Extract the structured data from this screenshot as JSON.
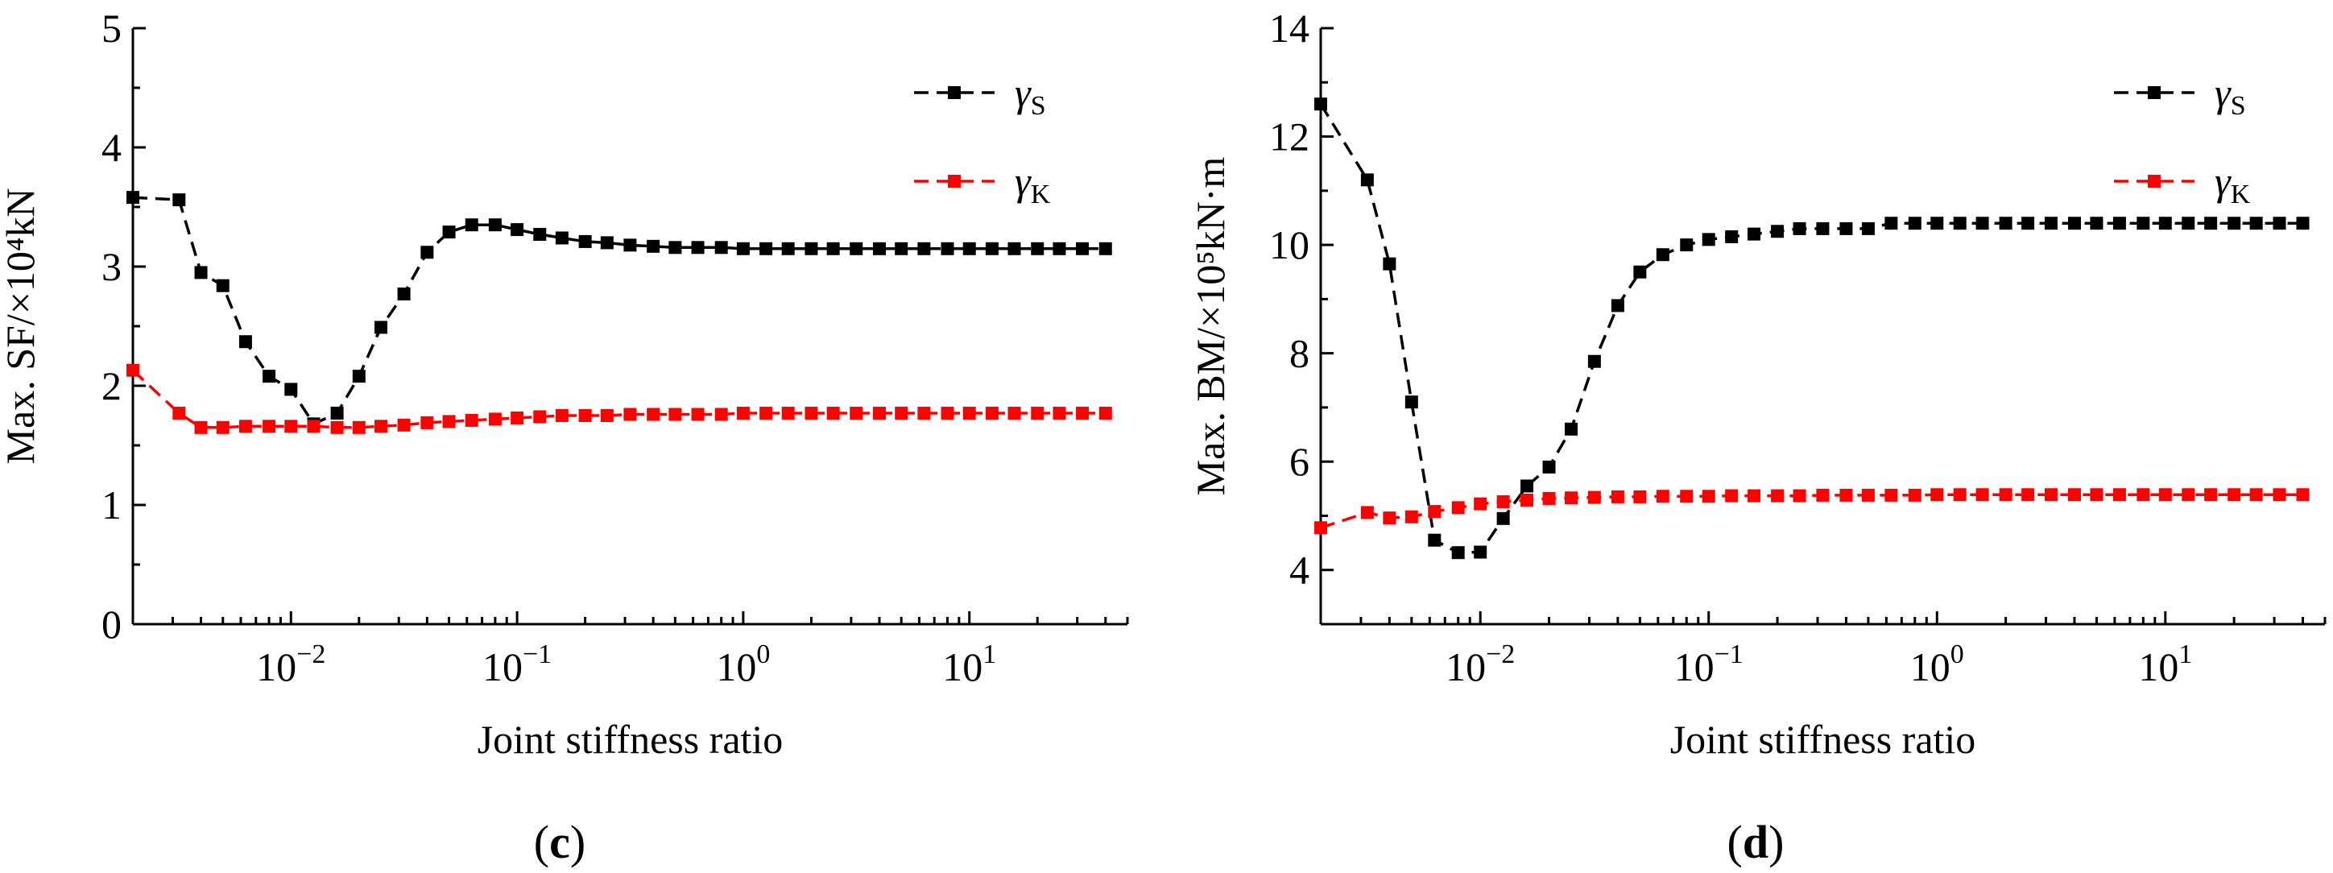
{
  "chart_data": [
    {
      "type": "line",
      "panel_label": "c",
      "ylabel": "Max. SF/×10⁴kN",
      "xlabel": "Joint stiffness ratio",
      "x_scale": "log",
      "xlim": [
        0.002,
        50
      ],
      "ylim": [
        0,
        5
      ],
      "y_ticks": [
        "0",
        "1",
        "2",
        "3",
        "4",
        "5"
      ],
      "x_ticks": [
        {
          "value": 0.01,
          "base": "10",
          "exp": "−2"
        },
        {
          "value": 0.1,
          "base": "10",
          "exp": "−1"
        },
        {
          "value": 1,
          "base": "10",
          "exp": "0"
        },
        {
          "value": 10,
          "base": "10",
          "exp": "1"
        }
      ],
      "legend": {
        "placement": "top-right"
      },
      "x": [
        0.002,
        0.0032,
        0.004,
        0.005,
        0.0063,
        0.008,
        0.01,
        0.0126,
        0.016,
        0.02,
        0.025,
        0.0316,
        0.04,
        0.05,
        0.063,
        0.08,
        0.1,
        0.126,
        0.158,
        0.2,
        0.25,
        0.316,
        0.4,
        0.5,
        0.63,
        0.8,
        1,
        1.26,
        1.58,
        2,
        2.5,
        3.16,
        4,
        5,
        6.3,
        8,
        10,
        12.6,
        15.8,
        20,
        25,
        31.6,
        40
      ],
      "series": [
        {
          "name": "γ",
          "subscript": "S",
          "color": "#000000",
          "values": [
            3.58,
            3.56,
            2.95,
            2.84,
            2.37,
            2.08,
            1.97,
            1.68,
            1.77,
            2.08,
            2.49,
            2.77,
            3.12,
            3.29,
            3.35,
            3.35,
            3.31,
            3.27,
            3.24,
            3.21,
            3.2,
            3.18,
            3.17,
            3.16,
            3.16,
            3.16,
            3.15,
            3.15,
            3.15,
            3.15,
            3.15,
            3.15,
            3.15,
            3.15,
            3.15,
            3.15,
            3.15,
            3.15,
            3.15,
            3.15,
            3.15,
            3.15,
            3.15
          ]
        },
        {
          "name": "γ",
          "subscript": "K",
          "color": "#ff0000",
          "values": [
            2.13,
            1.77,
            1.65,
            1.65,
            1.66,
            1.66,
            1.66,
            1.66,
            1.65,
            1.65,
            1.66,
            1.67,
            1.69,
            1.7,
            1.71,
            1.72,
            1.73,
            1.74,
            1.75,
            1.75,
            1.75,
            1.76,
            1.76,
            1.76,
            1.76,
            1.76,
            1.77,
            1.77,
            1.77,
            1.77,
            1.77,
            1.77,
            1.77,
            1.77,
            1.77,
            1.77,
            1.77,
            1.77,
            1.77,
            1.77,
            1.77,
            1.77,
            1.77
          ]
        }
      ]
    },
    {
      "type": "line",
      "panel_label": "d",
      "ylabel": "Max. BM/×10⁵kN·m",
      "xlabel": "Joint stiffness ratio",
      "x_scale": "log",
      "xlim": [
        0.002,
        50
      ],
      "ylim": [
        3,
        14
      ],
      "y_ticks": [
        "4",
        "6",
        "8",
        "10",
        "12",
        "14"
      ],
      "x_ticks": [
        {
          "value": 0.01,
          "base": "10",
          "exp": "−2"
        },
        {
          "value": 0.1,
          "base": "10",
          "exp": "−1"
        },
        {
          "value": 1,
          "base": "10",
          "exp": "0"
        },
        {
          "value": 10,
          "base": "10",
          "exp": "1"
        }
      ],
      "legend": {
        "placement": "top-right"
      },
      "x": [
        0.002,
        0.0032,
        0.004,
        0.005,
        0.0063,
        0.008,
        0.01,
        0.0126,
        0.016,
        0.02,
        0.025,
        0.0316,
        0.04,
        0.05,
        0.063,
        0.08,
        0.1,
        0.126,
        0.158,
        0.2,
        0.25,
        0.316,
        0.4,
        0.5,
        0.63,
        0.8,
        1,
        1.26,
        1.58,
        2,
        2.5,
        3.16,
        4,
        5,
        6.3,
        8,
        10,
        12.6,
        15.8,
        20,
        25,
        31.6,
        40
      ],
      "series": [
        {
          "name": "γ",
          "subscript": "S",
          "color": "#000000",
          "values": [
            12.6,
            11.2,
            9.65,
            7.1,
            4.55,
            4.32,
            4.33,
            4.95,
            5.55,
            5.9,
            6.6,
            7.85,
            8.88,
            9.5,
            9.82,
            10.0,
            10.1,
            10.15,
            10.2,
            10.25,
            10.3,
            10.3,
            10.3,
            10.3,
            10.4,
            10.4,
            10.4,
            10.4,
            10.4,
            10.4,
            10.4,
            10.4,
            10.4,
            10.4,
            10.4,
            10.4,
            10.4,
            10.4,
            10.4,
            10.4,
            10.4,
            10.4,
            10.4
          ]
        },
        {
          "name": "γ",
          "subscript": "K",
          "color": "#ff0000",
          "values": [
            4.78,
            5.06,
            4.96,
            4.98,
            5.08,
            5.15,
            5.22,
            5.26,
            5.29,
            5.32,
            5.33,
            5.34,
            5.35,
            5.35,
            5.36,
            5.36,
            5.36,
            5.37,
            5.37,
            5.37,
            5.37,
            5.38,
            5.38,
            5.38,
            5.38,
            5.38,
            5.39,
            5.39,
            5.39,
            5.39,
            5.39,
            5.39,
            5.39,
            5.39,
            5.39,
            5.39,
            5.39,
            5.39,
            5.39,
            5.39,
            5.39,
            5.39,
            5.39
          ]
        }
      ]
    }
  ]
}
